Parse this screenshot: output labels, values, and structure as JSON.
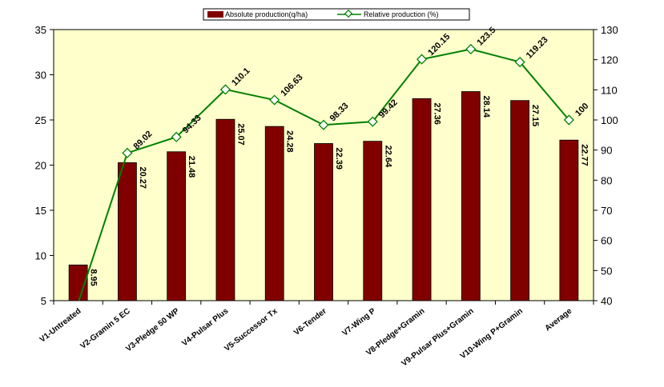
{
  "chart_data": {
    "type": "bar",
    "categories": [
      "V1-Untreated",
      "V2-Gramin 5 EC",
      "V3-Pledge 50 WP",
      "V4-Pulsar Plus",
      "V5-Successor Tx",
      "V6-Tender",
      "V7-Wing P",
      "V8-Pledge+Gramin",
      "V9-Pulsar Plus+Gramin",
      "V10-Wing P+Gramin",
      "Average"
    ],
    "series": [
      {
        "name": "Absolute production(q/ha)",
        "type": "bar",
        "axis": "left",
        "color": "#800000",
        "values": [
          8.95,
          20.27,
          21.48,
          25.07,
          24.28,
          22.39,
          22.64,
          27.36,
          28.14,
          27.15,
          22.77
        ],
        "labels": [
          "8.95",
          "20.27",
          "21.48",
          "25.07",
          "24.28",
          "22.39",
          "22.64",
          "27.36",
          "28.14",
          "27.15",
          "22.77"
        ]
      },
      {
        "name": "Relative production (%)",
        "type": "line",
        "axis": "right",
        "color": "#008000",
        "marker": "diamond",
        "values": [
          39.3,
          89.02,
          94.33,
          110.1,
          106.63,
          98.33,
          99.42,
          120.15,
          123.5,
          119.23,
          100
        ],
        "labels": [
          "",
          "89.02",
          "94.33",
          "110.1",
          "106.63",
          "98.33",
          "99.42",
          "120.15",
          "123.5",
          "119.23",
          "100"
        ]
      }
    ],
    "ylim_left": [
      5,
      35
    ],
    "yticks_left": [
      5,
      10,
      15,
      20,
      25,
      30,
      35
    ],
    "ylim_right": [
      40,
      130
    ],
    "yticks_right": [
      40,
      50,
      60,
      70,
      80,
      90,
      100,
      110,
      120,
      130
    ],
    "plot_background": "#ffffcc",
    "grid": false,
    "legend_position": "top-center"
  }
}
